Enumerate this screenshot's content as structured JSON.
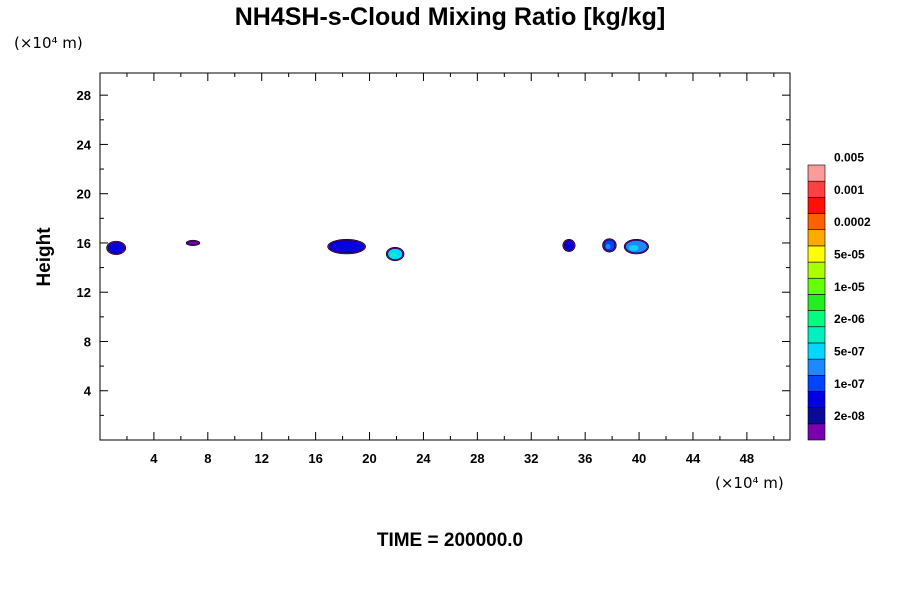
{
  "chart_data": {
    "type": "heatmap",
    "title": "NH4SH-s-Cloud Mixing Ratio [kg/kg]",
    "ylabel": "Height",
    "xlabel": "",
    "x_unit": "(×10⁴ m)",
    "y_unit": "(×10⁴ m)",
    "time_label": "TIME = 200000.0",
    "xlim": [
      0,
      51.2
    ],
    "ylim": [
      0,
      29.8
    ],
    "x_ticks": [
      4,
      8,
      12,
      16,
      20,
      24,
      28,
      32,
      36,
      40,
      44,
      48
    ],
    "y_ticks": [
      4,
      8,
      12,
      16,
      20,
      24,
      28
    ],
    "colorbar": {
      "colors": [
        "#7a00b0",
        "#0a0a99",
        "#0000e0",
        "#0044ff",
        "#1e88ff",
        "#00d8ff",
        "#00f0c0",
        "#00ff80",
        "#22ee22",
        "#66ff00",
        "#aaff00",
        "#ffff00",
        "#ffaa00",
        "#ff6000",
        "#ff1000",
        "#ff4040",
        "#ff9a9a"
      ],
      "labels": [
        "2e-08",
        "1e-07",
        "5e-07",
        "2e-06",
        "1e-05",
        "5e-05",
        "0.0002",
        "0.001",
        "0.005"
      ]
    },
    "regions": [
      {
        "x": 1.2,
        "y": 15.6,
        "w": 1.2,
        "h": 0.9,
        "level": 2
      },
      {
        "x": 6.9,
        "y": 16.0,
        "w": 0.8,
        "h": 0.25,
        "level": 0
      },
      {
        "x": 18.3,
        "y": 15.7,
        "w": 2.6,
        "h": 1.0,
        "level": 2
      },
      {
        "x": 21.9,
        "y": 15.1,
        "w": 1.1,
        "h": 0.9,
        "level": 5
      },
      {
        "x": 34.8,
        "y": 15.8,
        "w": 0.7,
        "h": 0.8,
        "level": 2
      },
      {
        "x": 37.8,
        "y": 15.8,
        "w": 0.8,
        "h": 0.9,
        "level": 3
      },
      {
        "x": 39.8,
        "y": 15.7,
        "w": 1.6,
        "h": 1.0,
        "level": 4
      }
    ]
  }
}
